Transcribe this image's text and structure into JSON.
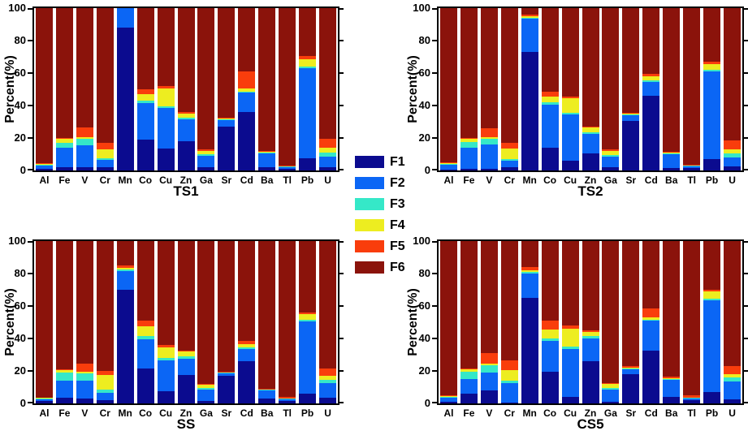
{
  "figure": {
    "background": "#ffffff",
    "text_color": "#000000"
  },
  "legend": {
    "position": "center-between-panels",
    "entries": [
      {
        "label": "F1",
        "color": "#0B0B8F"
      },
      {
        "label": "F2",
        "color": "#0B66F5"
      },
      {
        "label": "F3",
        "color": "#35E8C8"
      },
      {
        "label": "F4",
        "color": "#EDED20"
      },
      {
        "label": "F5",
        "color": "#F93D0C"
      },
      {
        "label": "F6",
        "color": "#8B130B"
      }
    ]
  },
  "chart_data": [
    {
      "type": "bar",
      "subtype": "stacked-100",
      "title": "TS1",
      "ylabel": "Percent(%)",
      "ylim": [
        0,
        100
      ],
      "yticks": [
        0,
        20,
        40,
        60,
        80,
        100
      ],
      "grid": false,
      "categories": [
        "Al",
        "Fe",
        "V",
        "Cr",
        "Mn",
        "Co",
        "Cu",
        "Zn",
        "Ga",
        "Sr",
        "Cd",
        "Ba",
        "Tl",
        "Pb",
        "U"
      ],
      "series": [
        {
          "name": "F1",
          "color": "#0B0B8F",
          "values": [
            1,
            2,
            2,
            2,
            88,
            19,
            13.5,
            18,
            2,
            27,
            36,
            2,
            1,
            7.5,
            2
          ]
        },
        {
          "name": "F2",
          "color": "#0B66F5",
          "values": [
            2,
            12,
            13.5,
            4.5,
            12,
            22.5,
            25,
            13.5,
            7,
            4,
            12,
            8.5,
            1,
            55.5,
            6.5
          ]
        },
        {
          "name": "F3",
          "color": "#35E8C8",
          "values": [
            0.5,
            3,
            4,
            1,
            0,
            1.5,
            1,
            1,
            1,
            0.5,
            0.5,
            0.5,
            0.3,
            1,
            2.5
          ]
        },
        {
          "name": "F4",
          "color": "#EDED20",
          "values": [
            0.5,
            2.5,
            1,
            5.5,
            0,
            4,
            11,
            2.5,
            2,
            0.5,
            2,
            0.5,
            0.2,
            4.5,
            3
          ]
        },
        {
          "name": "F5",
          "color": "#F93D0C",
          "values": [
            0.5,
            0.5,
            6,
            4,
            0,
            3,
            1.5,
            1,
            1,
            0.5,
            10.5,
            0.5,
            0.5,
            2,
            5.5
          ]
        },
        {
          "name": "F6",
          "color": "#8B130B",
          "values": [
            95.5,
            80,
            73.5,
            83,
            0,
            50,
            48,
            64,
            87,
            67.5,
            39,
            88,
            97,
            29.5,
            80.5
          ]
        }
      ]
    },
    {
      "type": "bar",
      "subtype": "stacked-100",
      "title": "TS2",
      "ylabel": "Percent(%)",
      "ylim": [
        0,
        100
      ],
      "yticks": [
        0,
        20,
        40,
        60,
        80,
        100
      ],
      "grid": false,
      "categories": [
        "Al",
        "Fe",
        "V",
        "Cr",
        "Mn",
        "Co",
        "Cu",
        "Zn",
        "Ga",
        "Sr",
        "Cd",
        "Ba",
        "Tl",
        "Pb",
        "U"
      ],
      "series": [
        {
          "name": "F1",
          "color": "#0B0B8F",
          "values": [
            0.5,
            1,
            1,
            2,
            73,
            14,
            6,
            10.5,
            2,
            30.5,
            46,
            1.5,
            1.5,
            7,
            2.5
          ]
        },
        {
          "name": "F2",
          "color": "#0B66F5",
          "values": [
            3,
            13,
            15,
            4,
            20.5,
            26.5,
            28.5,
            12,
            6.5,
            3.5,
            8.5,
            8.5,
            1,
            54,
            5.5
          ]
        },
        {
          "name": "F3",
          "color": "#35E8C8",
          "values": [
            0.5,
            3.5,
            3.5,
            1,
            0.5,
            1.5,
            1,
            1,
            1,
            0.5,
            1,
            0.5,
            0.3,
            1,
            2.5
          ]
        },
        {
          "name": "F4",
          "color": "#EDED20",
          "values": [
            0.5,
            2,
            1,
            6.5,
            1,
            3.5,
            9,
            3,
            2.5,
            0.5,
            2.5,
            0.5,
            0.2,
            3.5,
            2.5
          ]
        },
        {
          "name": "F5",
          "color": "#F93D0C",
          "values": [
            0.5,
            0.5,
            5.5,
            3.5,
            1,
            3,
            1,
            0.5,
            1,
            0.5,
            1.5,
            0.5,
            0.5,
            1.5,
            5.5
          ]
        },
        {
          "name": "F6",
          "color": "#8B130B",
          "values": [
            95,
            80,
            74,
            83,
            4,
            51.5,
            54.5,
            73,
            87,
            64.5,
            40.5,
            88.5,
            96.5,
            33,
            81.5
          ]
        }
      ]
    },
    {
      "type": "bar",
      "subtype": "stacked-100",
      "title": "SS",
      "ylabel": "Percent(%)",
      "ylim": [
        0,
        100
      ],
      "yticks": [
        0,
        20,
        40,
        60,
        80,
        100
      ],
      "grid": false,
      "categories": [
        "Al",
        "Fe",
        "V",
        "Cr",
        "Mn",
        "Co",
        "Cu",
        "Zn",
        "Ga",
        "Sr",
        "Cd",
        "Ba",
        "Tl",
        "Pb",
        "U"
      ],
      "series": [
        {
          "name": "F1",
          "color": "#0B0B8F",
          "values": [
            1.5,
            3.5,
            3,
            2,
            70,
            21.5,
            7.5,
            17.5,
            1.5,
            17,
            26,
            3,
            1.5,
            6,
            3.5
          ]
        },
        {
          "name": "F2",
          "color": "#0B66F5",
          "values": [
            1,
            10.5,
            11,
            4.5,
            11.5,
            18,
            19,
            10,
            7,
            1.5,
            7.5,
            5,
            1,
            44.5,
            9
          ]
        },
        {
          "name": "F3",
          "color": "#35E8C8",
          "values": [
            0.5,
            5,
            4.5,
            2,
            1,
            2,
            1.5,
            1.5,
            1,
            0.3,
            1,
            0.3,
            0.3,
            1,
            2
          ]
        },
        {
          "name": "F4",
          "color": "#EDED20",
          "values": [
            0.3,
            1.5,
            1,
            9,
            1,
            6,
            6.5,
            3,
            2,
            0.3,
            2,
            0.3,
            0.2,
            3.5,
            2.5
          ]
        },
        {
          "name": "F5",
          "color": "#F93D0C",
          "values": [
            0.3,
            0.5,
            5,
            2.5,
            1.5,
            3.5,
            1.5,
            0.5,
            0.5,
            0.5,
            2,
            0.4,
            1,
            1,
            4.5
          ]
        },
        {
          "name": "F6",
          "color": "#8B130B",
          "values": [
            96.4,
            79,
            75.5,
            80,
            15,
            49,
            64,
            67.5,
            88,
            80.4,
            61.5,
            91,
            96,
            44,
            78.5
          ]
        }
      ]
    },
    {
      "type": "bar",
      "subtype": "stacked-100",
      "title": "CS5",
      "ylabel": "Percent(%)",
      "ylim": [
        0,
        100
      ],
      "yticks": [
        0,
        20,
        40,
        60,
        80,
        100
      ],
      "grid": false,
      "categories": [
        "Al",
        "Fe",
        "V",
        "Cr",
        "Mn",
        "Co",
        "Cu",
        "Zn",
        "Ga",
        "Sr",
        "Cd",
        "Ba",
        "Tl",
        "Pb",
        "U"
      ],
      "series": [
        {
          "name": "F1",
          "color": "#0B0B8F",
          "values": [
            1,
            6,
            8,
            0.5,
            65,
            19.5,
            4,
            26,
            1,
            18,
            32.5,
            4,
            2,
            7,
            2.5
          ]
        },
        {
          "name": "F2",
          "color": "#0B66F5",
          "values": [
            2.5,
            9,
            11,
            12,
            15,
            19,
            29.5,
            14,
            7.5,
            3,
            18.5,
            10.5,
            1,
            56.5,
            11
          ]
        },
        {
          "name": "F3",
          "color": "#35E8C8",
          "values": [
            0.5,
            4.5,
            4.5,
            1.5,
            1,
            1.5,
            1.5,
            1.5,
            1,
            0.5,
            0.5,
            0.5,
            0.3,
            1,
            2.5
          ]
        },
        {
          "name": "F4",
          "color": "#EDED20",
          "values": [
            0.5,
            1.5,
            1,
            6.5,
            1,
            5.5,
            11,
            2.5,
            2.5,
            0.5,
            1.5,
            0.5,
            0.2,
            4.5,
            2
          ]
        },
        {
          "name": "F5",
          "color": "#F93D0C",
          "values": [
            0.5,
            0.5,
            6.5,
            6,
            2,
            5.5,
            2,
            1,
            0.5,
            1,
            5.5,
            1,
            1.5,
            1,
            5
          ]
        },
        {
          "name": "F6",
          "color": "#8B130B",
          "values": [
            95,
            78.5,
            69,
            73.5,
            16,
            49,
            52,
            55,
            87.5,
            77,
            41.5,
            83.5,
            95,
            30,
            77
          ]
        }
      ]
    }
  ]
}
